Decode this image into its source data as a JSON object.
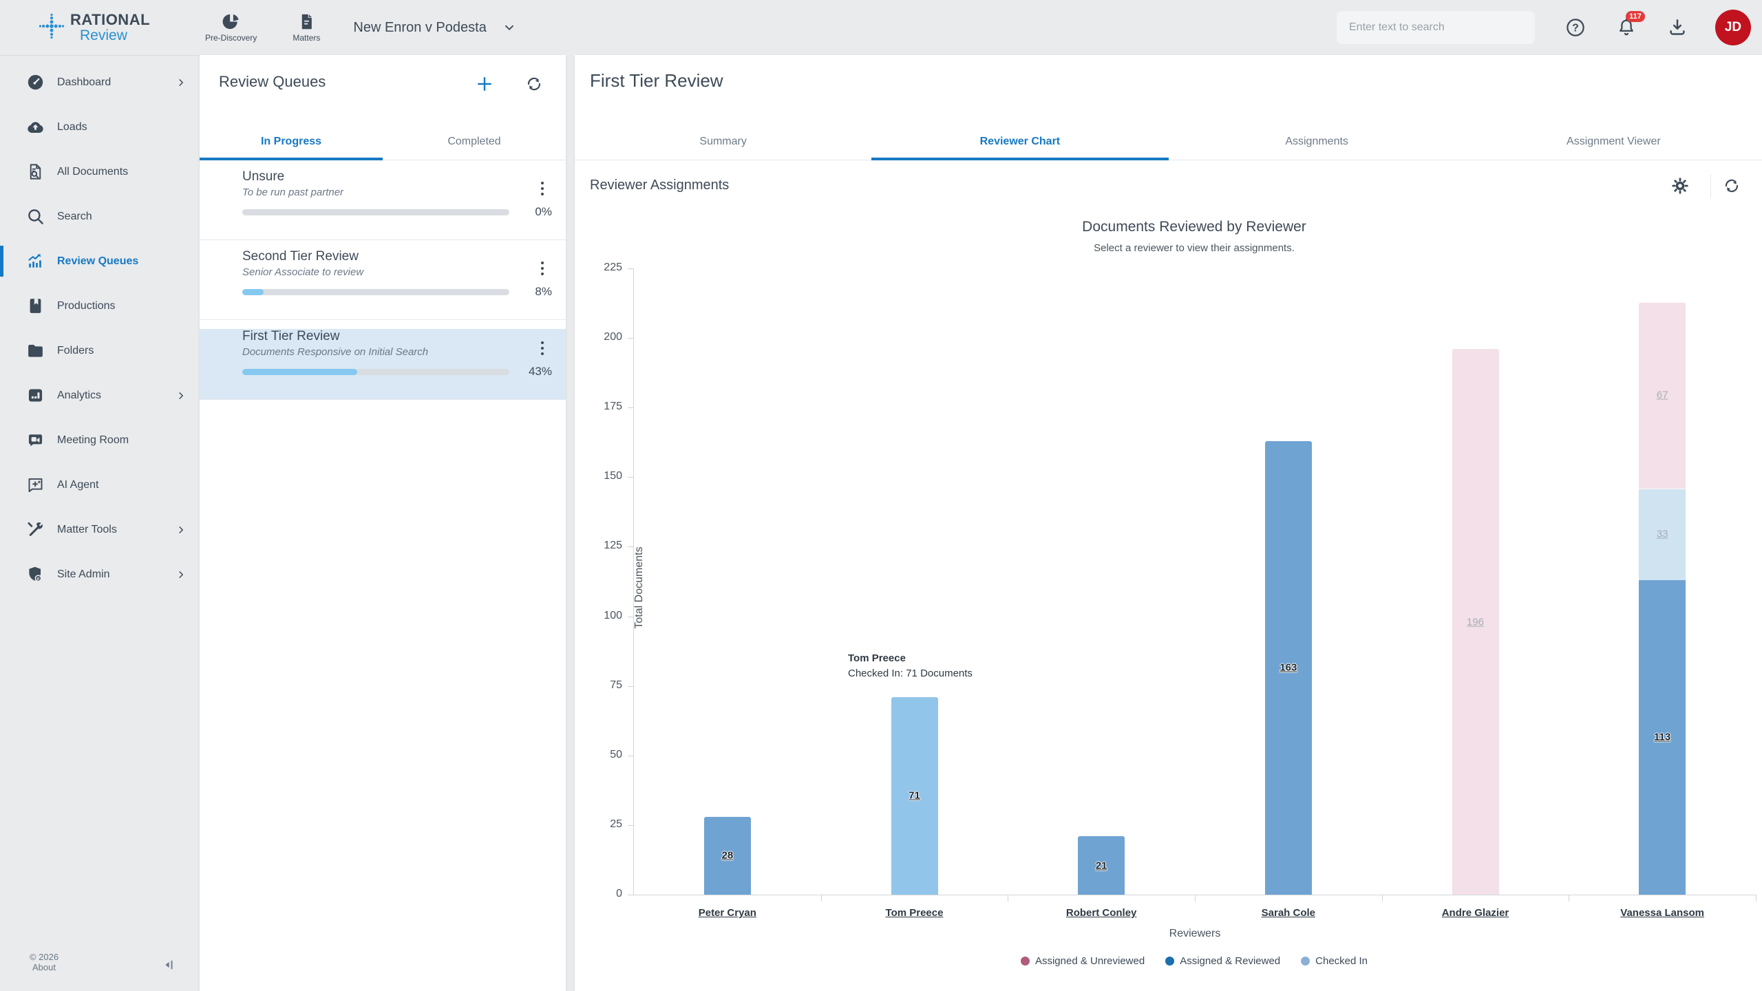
{
  "colors": {
    "accent": "#1779c4",
    "logo_blue": "#2b8fd0",
    "selected_row": "#d9e8f4",
    "progress_fill": "#85c8f0",
    "avatar": "#c1121f",
    "badge": "#e33b3b"
  },
  "topbar": {
    "logo": {
      "line1": "RATIONAL",
      "line2": "Review"
    },
    "nav": [
      {
        "label": "Pre-Discovery",
        "icon": "pie-chart-icon"
      },
      {
        "label": "Matters",
        "icon": "document-icon"
      }
    ],
    "matter_selector": {
      "value": "New Enron v Podesta"
    },
    "search": {
      "placeholder": "Enter text to search"
    },
    "notifications": {
      "badge_count": "117"
    },
    "avatar": {
      "initials": "JD"
    }
  },
  "sidebar": {
    "items": [
      {
        "label": "Dashboard",
        "icon": "dashboard-icon",
        "chevron": true,
        "active": false
      },
      {
        "label": "Loads",
        "icon": "cloud-upload-icon",
        "chevron": false,
        "active": false
      },
      {
        "label": "All Documents",
        "icon": "document-search-icon",
        "chevron": false,
        "active": false
      },
      {
        "label": "Search",
        "icon": "search-icon",
        "chevron": false,
        "active": false
      },
      {
        "label": "Review Queues",
        "icon": "chart-line-icon",
        "chevron": false,
        "active": true
      },
      {
        "label": "Productions",
        "icon": "book-icon",
        "chevron": false,
        "active": false
      },
      {
        "label": "Folders",
        "icon": "folder-icon",
        "chevron": false,
        "active": false
      },
      {
        "label": "Analytics",
        "icon": "bar-chart-icon",
        "chevron": true,
        "active": false
      },
      {
        "label": "Meeting Room",
        "icon": "video-icon",
        "chevron": false,
        "active": false
      },
      {
        "label": "AI Agent",
        "icon": "sparkle-chat-icon",
        "chevron": false,
        "active": false
      },
      {
        "label": "Matter Tools",
        "icon": "tools-icon",
        "chevron": true,
        "active": false
      },
      {
        "label": "Site Admin",
        "icon": "shield-icon",
        "chevron": true,
        "active": false
      }
    ],
    "footer": {
      "copyright": "© 2026",
      "about": "About"
    }
  },
  "queues_panel": {
    "title": "Review Queues",
    "tabs": [
      {
        "label": "In Progress",
        "active": true
      },
      {
        "label": "Completed",
        "active": false
      }
    ],
    "items": [
      {
        "name": "Unsure",
        "description": "To be run past partner",
        "progress": 0,
        "progress_label": "0%",
        "selected": false
      },
      {
        "name": "Second Tier Review",
        "description": "Senior Associate to review",
        "progress": 8,
        "progress_label": "8%",
        "selected": false
      },
      {
        "name": "First Tier Review",
        "description": "Documents Responsive on Initial Search",
        "progress": 43,
        "progress_label": "43%",
        "selected": true
      }
    ]
  },
  "main": {
    "title": "First Tier Review",
    "tabs": [
      {
        "label": "Summary",
        "active": false
      },
      {
        "label": "Reviewer Chart",
        "active": true
      },
      {
        "label": "Assignments",
        "active": false
      },
      {
        "label": "Assignment Viewer",
        "active": false
      }
    ],
    "section_title": "Reviewer Assignments",
    "tooltip": {
      "title": "Tom Preece",
      "text": "Checked In: 71 Documents"
    }
  },
  "chart_data": {
    "type": "bar",
    "stacked": true,
    "title": "Documents Reviewed by Reviewer",
    "subtitle": "Select a reviewer to view their assignments.",
    "xlabel": "Reviewers",
    "ylabel": "Total Documents",
    "ylim": [
      0,
      225
    ],
    "ytick_step": 25,
    "grid": false,
    "legend_position": "bottom",
    "legend": [
      {
        "label": "Assigned & Unreviewed",
        "color": "#b05c7c"
      },
      {
        "label": "Assigned & Reviewed",
        "color": "#1a6fad"
      },
      {
        "label": "Checked In",
        "color": "#8cafd6"
      }
    ],
    "categories": [
      "Peter Cryan",
      "Tom Preece",
      "Robert Conley",
      "Sarah Cole",
      "Andre Glazier",
      "Vanessa Lansom"
    ],
    "series": [
      {
        "name": "Assigned & Reviewed",
        "values": [
          28,
          0,
          21,
          163,
          0,
          113
        ]
      },
      {
        "name": "Checked In",
        "values": [
          0,
          71,
          0,
          0,
          0,
          33
        ]
      },
      {
        "name": "Assigned & Unreviewed",
        "values": [
          0,
          0,
          0,
          0,
          196,
          67
        ]
      }
    ],
    "bars": [
      {
        "category": "Peter Cryan",
        "segments": [
          {
            "series": "Assigned & Reviewed",
            "value": 28,
            "label": "28",
            "fill": "#6fa3d2",
            "label_style": "dark"
          }
        ]
      },
      {
        "category": "Tom Preece",
        "segments": [
          {
            "series": "Checked In",
            "value": 71,
            "label": "71",
            "fill": "#92c5ea",
            "label_style": "dark"
          }
        ]
      },
      {
        "category": "Robert Conley",
        "segments": [
          {
            "series": "Assigned & Reviewed",
            "value": 21,
            "label": "21",
            "fill": "#6fa3d2",
            "label_style": "dark"
          }
        ]
      },
      {
        "category": "Sarah Cole",
        "segments": [
          {
            "series": "Assigned & Reviewed",
            "value": 163,
            "label": "163",
            "fill": "#6fa3d2",
            "label_style": "dark"
          }
        ]
      },
      {
        "category": "Andre Glazier",
        "segments": [
          {
            "series": "Assigned & Unreviewed",
            "value": 196,
            "label": "196",
            "fill": "#f3e0e9",
            "label_style": "muted"
          }
        ]
      },
      {
        "category": "Vanessa Lansom",
        "segments": [
          {
            "series": "Assigned & Reviewed",
            "value": 113,
            "label": "113",
            "fill": "#6fa3d2",
            "label_style": "dark"
          },
          {
            "series": "Checked In",
            "value": 33,
            "label": "33",
            "fill": "#cfe3f1",
            "label_style": "muted"
          },
          {
            "series": "Assigned & Unreviewed",
            "value": 67,
            "label": "67",
            "fill": "#f3e0e9",
            "label_style": "muted"
          }
        ]
      }
    ]
  }
}
